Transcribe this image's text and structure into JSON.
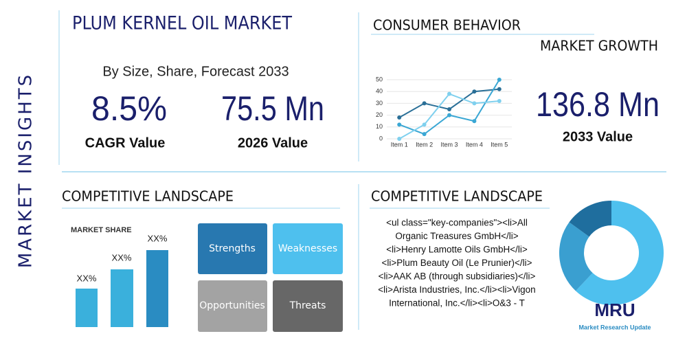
{
  "header": {
    "title": "PLUM KERNEL OIL MARKET",
    "side_label": "MARKET INSIGHTS",
    "subtitle": "By Size, Share, Forecast 2033"
  },
  "metrics": [
    {
      "value": "8.5%",
      "label": "CAGR Value"
    },
    {
      "value": "75.5 Mn",
      "label": "2026 Value"
    },
    {
      "value": "136.8 Mn",
      "label": "2033 Value"
    }
  ],
  "consumer": {
    "title": "CONSUMER BEHAVIOR",
    "subtitle": "MARKET GROWTH"
  },
  "chart_data": {
    "type": "line",
    "categories": [
      "Item 1",
      "Item 2",
      "Item 3",
      "Item 4",
      "Item 5"
    ],
    "series": [
      {
        "color": "#2a6f97",
        "values": [
          18,
          30,
          25,
          40,
          42
        ]
      },
      {
        "color": "#3aa7d4",
        "values": [
          12,
          4,
          20,
          15,
          50
        ]
      },
      {
        "color": "#7fd0ee",
        "values": [
          0,
          12,
          38,
          30,
          32
        ]
      }
    ],
    "ylim": [
      0,
      50
    ],
    "yticks": [
      0,
      10,
      20,
      30,
      40,
      50
    ]
  },
  "landscape": {
    "title": "COMPETITIVE LANDSCAPE",
    "share_title": "MARKET SHARE",
    "bar_labels": [
      "XX%",
      "XX%",
      "XX%"
    ],
    "swot": [
      "Strengths",
      "Weaknesses",
      "Opportunities",
      "Threats"
    ]
  },
  "companies": {
    "title": "COMPETITIVE LANDSCAPE",
    "lines": [
      "<ul class=\"key-companies\"><li>All",
      "Organic Treasures GmbH</li>",
      "<li>Henry Lamotte Oils GmbH</li>",
      "<li>Plum Beauty Oil (Le Prunier)</li>",
      "<li>AAK AB (through subsidiaries)</li>",
      "<li>Arista Industries, Inc.</li><li>Vigon",
      "International, Inc.</li><li>O&3 - T"
    ]
  },
  "donut": {
    "values": [
      62,
      23,
      15
    ],
    "colors": [
      "#4ec0ee",
      "#3a9fd0",
      "#1f6e9e"
    ]
  },
  "logo": {
    "mark": "MRU",
    "name": "Market Research Update"
  }
}
